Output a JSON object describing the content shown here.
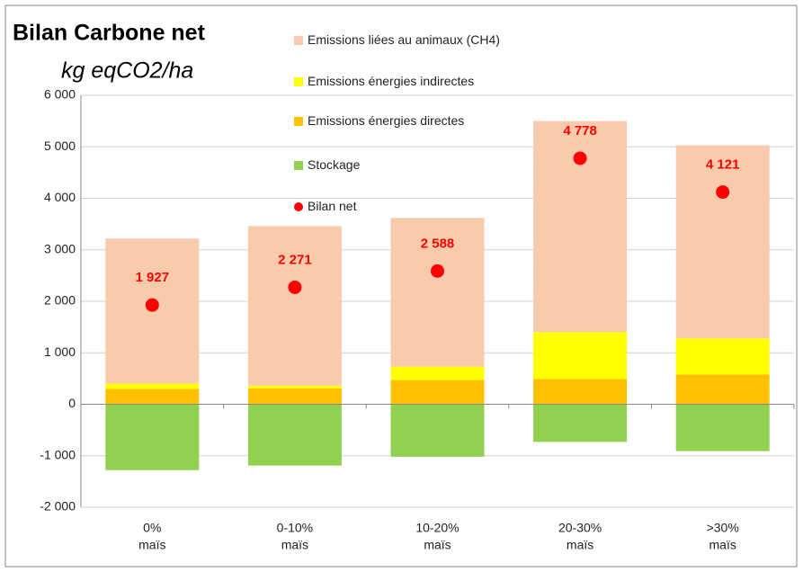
{
  "chart_data": {
    "type": "bar",
    "title": "Bilan Carbone net",
    "subtitle": "kg eqCO2/ha",
    "categories": [
      [
        "0%",
        "maïs"
      ],
      [
        "0-10%",
        "maïs"
      ],
      [
        "10-20%",
        "maïs"
      ],
      [
        "20-30%",
        "maïs"
      ],
      [
        ">30%",
        "maïs"
      ]
    ],
    "series": [
      {
        "name": "Emissions liées au animaux (CH4)",
        "color": "#f8cbad",
        "values": [
          2820,
          3100,
          2890,
          4100,
          3750
        ]
      },
      {
        "name": "Emissions énergies indirectes",
        "color": "#ffff00",
        "values": [
          100,
          50,
          260,
          910,
          700
        ]
      },
      {
        "name": "Emissions énergies directes",
        "color": "#ffc000",
        "values": [
          300,
          310,
          470,
          490,
          580
        ]
      },
      {
        "name": "Stockage",
        "color": "#92d050",
        "values": [
          -1280,
          -1190,
          -1020,
          -730,
          -910
        ]
      },
      {
        "name": "Bilan net",
        "type": "scatter",
        "color": "#ff0000",
        "values": [
          1927,
          2271,
          2588,
          4778,
          4121
        ],
        "value_labels": [
          "1 927",
          "2 271",
          "2 588",
          "4 778",
          "4 121"
        ]
      }
    ],
    "ylim": [
      -2000,
      6000
    ],
    "yticks": [
      {
        "value": -2000,
        "label": "-2 000"
      },
      {
        "value": -1000,
        "label": "-1 000"
      },
      0,
      {
        "value": 1000,
        "label": "1 000"
      },
      {
        "value": 2000,
        "label": "2 000"
      },
      {
        "value": 3000,
        "label": "3 000"
      },
      {
        "value": 4000,
        "label": "4 000"
      },
      {
        "value": 5000,
        "label": "5 000"
      },
      {
        "value": 6000,
        "label": "6 000"
      }
    ],
    "grid": true
  }
}
